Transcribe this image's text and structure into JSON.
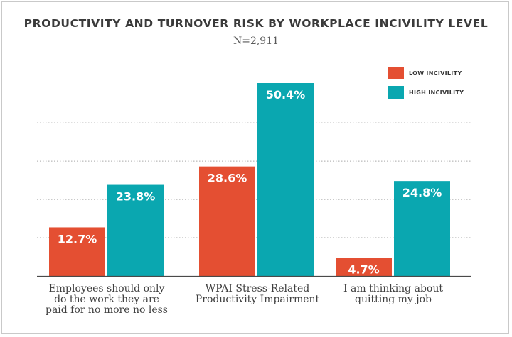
{
  "chart_data": {
    "type": "bar",
    "title": "PRODUCTIVITY AND TURNOVER RISK BY WORKPLACE INCIVILITY LEVEL",
    "subtitle": "N=2,911",
    "categories": [
      [
        "Employees should only",
        "do the work they are",
        "paid for no more no less"
      ],
      [
        "WPAI Stress-Related",
        "Productivity Impairment"
      ],
      [
        "I am thinking about",
        "quitting my job"
      ]
    ],
    "series": [
      {
        "name": "LOW INCIVILITY",
        "color": "#e44f32",
        "values": [
          12.7,
          28.6,
          4.7
        ],
        "labels": [
          "12.7%",
          "28.6%",
          "4.7%"
        ]
      },
      {
        "name": "HIGH INCIVILITY",
        "color": "#0aa7b0",
        "values": [
          23.8,
          50.4,
          24.8
        ],
        "labels": [
          "23.8%",
          "50.4%",
          "24.8%"
        ]
      }
    ],
    "ylim": [
      0,
      60
    ],
    "grid": true,
    "legend": "top-right"
  }
}
